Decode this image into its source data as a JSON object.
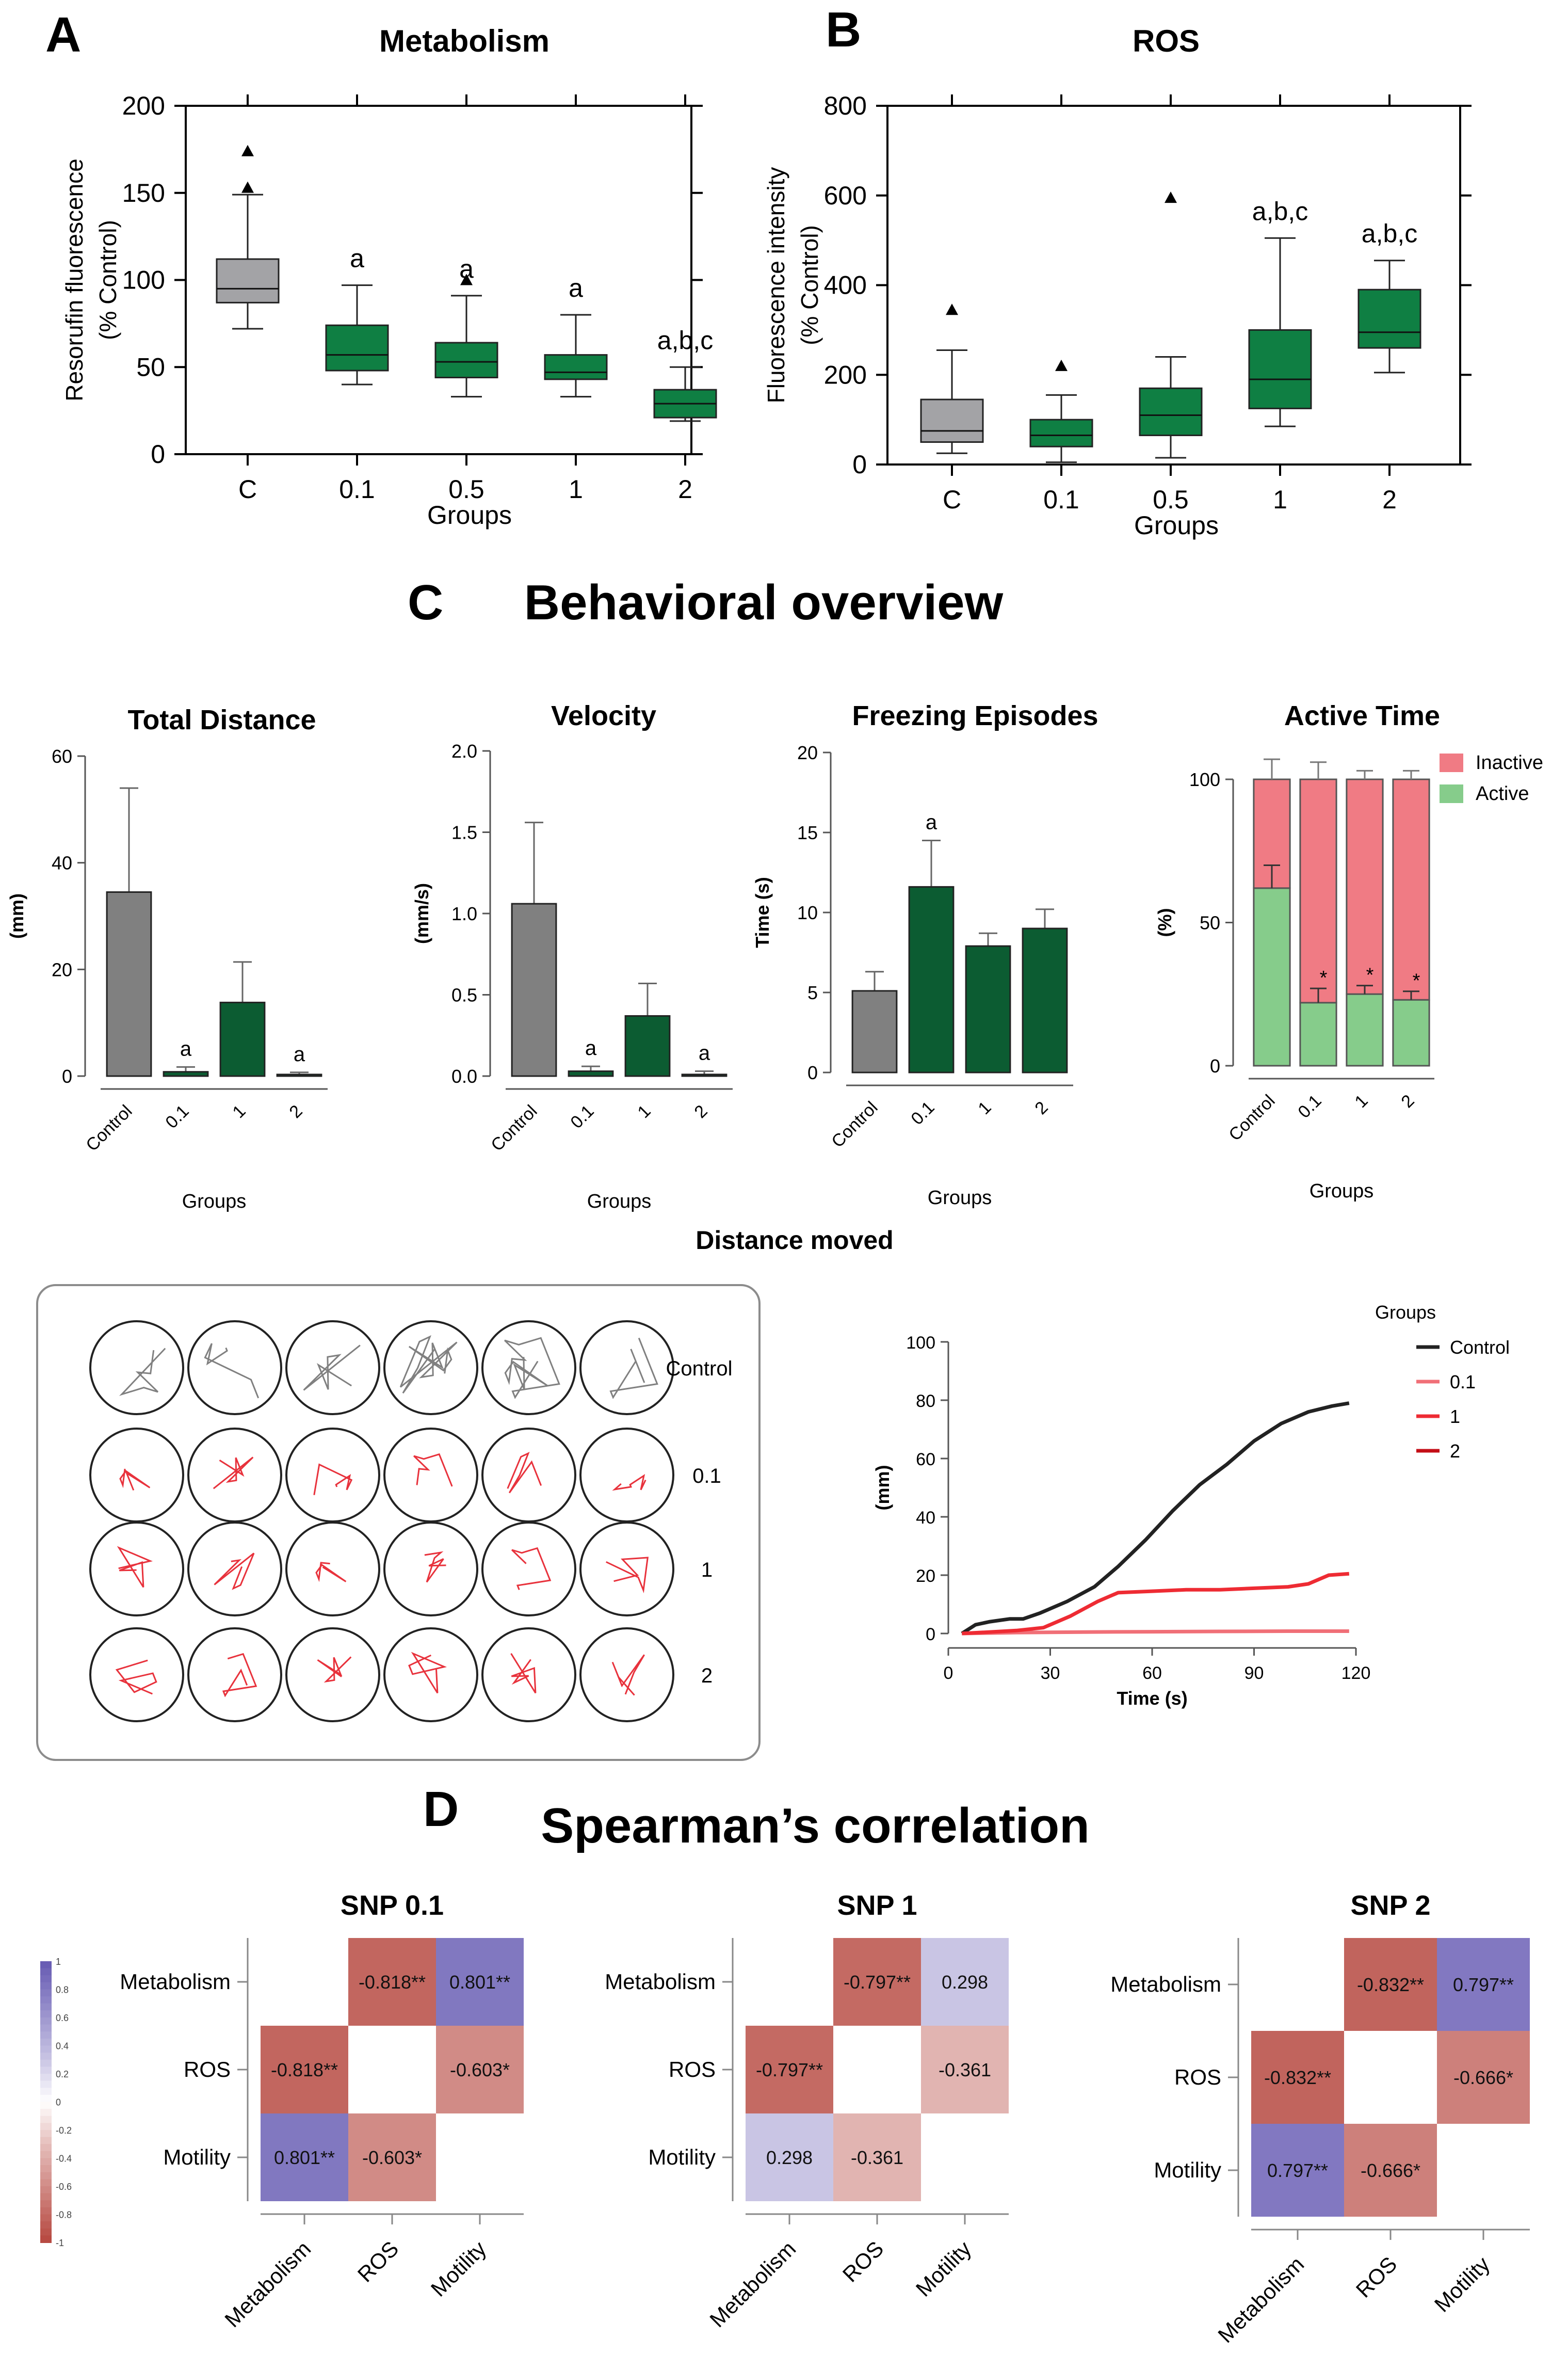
{
  "panels": {
    "A": {
      "letter": "A"
    },
    "B": {
      "letter": "B"
    },
    "C": {
      "letter": "C",
      "title": "Behavioral overview"
    },
    "D": {
      "letter": "D",
      "title": "Spearman’s correlation"
    }
  },
  "colors": {
    "gray": "#a3a3a6",
    "green_box": "#0f7f43",
    "green_bar": "#0c5c32",
    "red_track": "#e8323c",
    "dark_track": "#808080",
    "inactive": "#f07b84",
    "active": "#86cc8b",
    "neg_strong": "#b6473f",
    "pos_strong": "#6559b2"
  },
  "chart_data": [
    {
      "id": "metabolism",
      "type": "box",
      "title": "Metabolism",
      "xlabel": "Groups",
      "ylabel_line1": "Resorufin fluorescence",
      "ylabel_line2": "(% Control)",
      "ylim": [
        0,
        200
      ],
      "yticks": [
        "0",
        "50",
        "100",
        "150",
        "200"
      ],
      "categories": [
        "C",
        "0.1",
        "0.5",
        "1",
        "2"
      ],
      "boxes": [
        {
          "min": 72,
          "q1": 87,
          "median": 95,
          "q3": 112,
          "max": 149,
          "outliers": [
            153,
            174
          ],
          "label": ""
        },
        {
          "min": 40,
          "q1": 48,
          "median": 57,
          "q3": 74,
          "max": 97,
          "outliers": [],
          "label": "a"
        },
        {
          "min": 33,
          "q1": 44,
          "median": 53,
          "q3": 64,
          "max": 91,
          "outliers": [
            100
          ],
          "label": "a"
        },
        {
          "min": 33,
          "q1": 43,
          "median": 47,
          "q3": 57,
          "max": 80,
          "outliers": [],
          "label": "a"
        },
        {
          "min": 19,
          "q1": 21,
          "median": 29,
          "q3": 37,
          "max": 50,
          "outliers": [],
          "label": "a,b,c"
        }
      ]
    },
    {
      "id": "ros",
      "type": "box",
      "title": "ROS",
      "xlabel": "Groups",
      "ylabel_line1": "Fluorescence intensity",
      "ylabel_line2": "(% Control)",
      "ylim": [
        0,
        800
      ],
      "yticks": [
        "0",
        "200",
        "400",
        "600",
        "800"
      ],
      "categories": [
        "C",
        "0.1",
        "0.5",
        "1",
        "2"
      ],
      "boxes": [
        {
          "min": 25,
          "q1": 50,
          "median": 75,
          "q3": 145,
          "max": 255,
          "outliers": [
            345
          ],
          "label": ""
        },
        {
          "min": 5,
          "q1": 40,
          "median": 65,
          "q3": 100,
          "max": 155,
          "outliers": [
            220
          ],
          "label": ""
        },
        {
          "min": 15,
          "q1": 65,
          "median": 110,
          "q3": 170,
          "max": 240,
          "outliers": [
            595
          ],
          "label": ""
        },
        {
          "min": 85,
          "q1": 125,
          "median": 190,
          "q3": 300,
          "max": 505,
          "outliers": [],
          "label": "a,b,c"
        },
        {
          "min": 205,
          "q1": 260,
          "median": 295,
          "q3": 390,
          "max": 455,
          "outliers": [],
          "label": "a,b,c"
        }
      ]
    },
    {
      "id": "total-distance",
      "type": "bar",
      "title": "Total Distance",
      "xlabel": "Groups",
      "ylabel": "(mm)",
      "ylim": [
        0,
        60
      ],
      "yticks": [
        "0",
        "20",
        "40",
        "60"
      ],
      "categories": [
        "Control",
        "0.1",
        "1",
        "2"
      ],
      "values": [
        34.5,
        0.8,
        13.8,
        0.3
      ],
      "errors": [
        19.5,
        0.9,
        7.6,
        0.4
      ],
      "labels": [
        "",
        "a",
        "",
        "a"
      ]
    },
    {
      "id": "velocity",
      "type": "bar",
      "title": "Velocity",
      "xlabel": "Groups",
      "ylabel": "(mm/s)",
      "ylim": [
        0,
        2.0
      ],
      "yticks": [
        "0.0",
        "0.5",
        "1.0",
        "1.5",
        "2.0"
      ],
      "categories": [
        "Control",
        "0.1",
        "1",
        "2"
      ],
      "values": [
        1.06,
        0.03,
        0.37,
        0.01
      ],
      "errors": [
        0.5,
        0.03,
        0.2,
        0.02
      ],
      "labels": [
        "",
        "a",
        "",
        "a"
      ]
    },
    {
      "id": "freezing",
      "type": "bar",
      "title": "Freezing Episodes",
      "xlabel": "Groups",
      "ylabel": "Time (s)",
      "ylim": [
        0,
        20
      ],
      "yticks": [
        "0",
        "5",
        "10",
        "15",
        "20"
      ],
      "categories": [
        "Control",
        "0.1",
        "1",
        "2"
      ],
      "values": [
        5.1,
        11.6,
        7.9,
        9.0
      ],
      "errors": [
        1.2,
        2.9,
        0.8,
        1.2
      ],
      "labels": [
        "",
        "a",
        "",
        ""
      ]
    },
    {
      "id": "active-time",
      "type": "stacked-bar",
      "title": "Active Time",
      "xlabel": "Groups",
      "ylabel": "(%)",
      "ylim": [
        0,
        100
      ],
      "yticks": [
        "0",
        "50",
        "100"
      ],
      "categories": [
        "Control",
        "0.1",
        "1",
        "2"
      ],
      "series": [
        {
          "name": "Active",
          "values": [
            62,
            22,
            25,
            23
          ],
          "errors": [
            8,
            5,
            3,
            3
          ]
        },
        {
          "name": "Inactive",
          "values": [
            38,
            78,
            75,
            77
          ],
          "errors": [
            7,
            6,
            3,
            3
          ]
        }
      ],
      "legend": [
        "Inactive",
        "Active"
      ],
      "labels": [
        "",
        "*",
        "*",
        "*"
      ]
    },
    {
      "id": "distance-moved",
      "type": "line",
      "title": "Distance moved",
      "xlabel": "Time (s)",
      "ylabel": "(mm)",
      "xlim": [
        0,
        120
      ],
      "ylim": [
        0,
        100
      ],
      "xticks": [
        "0",
        "30",
        "60",
        "90",
        "120"
      ],
      "yticks": [
        "0",
        "20",
        "40",
        "60",
        "80",
        "100"
      ],
      "legend_title": "Groups",
      "series": [
        {
          "name": "Control",
          "x": [
            4,
            8,
            12,
            18,
            22,
            27,
            35,
            43,
            50,
            58,
            66,
            74,
            82,
            90,
            98,
            106,
            113,
            118
          ],
          "y": [
            0,
            3,
            4,
            5,
            5,
            7,
            11,
            16,
            23,
            32,
            42,
            51,
            58,
            66,
            72,
            76,
            78,
            79
          ]
        },
        {
          "name": "0.1",
          "x": [
            4,
            20,
            40,
            60,
            80,
            100,
            118
          ],
          "y": [
            0,
            0.3,
            0.5,
            0.6,
            0.7,
            0.8,
            0.8
          ]
        },
        {
          "name": "1",
          "x": [
            4,
            12,
            20,
            28,
            36,
            44,
            50,
            60,
            70,
            80,
            90,
            100,
            106,
            112,
            118
          ],
          "y": [
            0,
            0.5,
            1,
            2,
            6,
            11,
            14,
            14.5,
            15,
            15,
            15.5,
            16,
            17,
            20,
            20.5
          ]
        },
        {
          "name": "2",
          "x": [],
          "y": []
        }
      ]
    },
    {
      "id": "snp-0.1",
      "type": "heatmap",
      "title": "SNP 0.1",
      "rows": [
        "Metabolism",
        "ROS",
        "Motility"
      ],
      "cols": [
        "Metabolism",
        "ROS",
        "Motility"
      ],
      "values": [
        [
          null,
          -0.818,
          0.801
        ],
        [
          -0.818,
          null,
          -0.603
        ],
        [
          0.801,
          -0.603,
          null
        ]
      ],
      "labels": [
        [
          "",
          "-0.818**",
          "0.801**"
        ],
        [
          "-0.818**",
          "",
          "-0.603*"
        ],
        [
          "0.801**",
          "-0.603*",
          ""
        ]
      ]
    },
    {
      "id": "snp-1",
      "type": "heatmap",
      "title": "SNP 1",
      "rows": [
        "Metabolism",
        "ROS",
        "Motility"
      ],
      "cols": [
        "Metabolism",
        "ROS",
        "Motility"
      ],
      "values": [
        [
          null,
          -0.797,
          0.298
        ],
        [
          -0.797,
          null,
          -0.361
        ],
        [
          0.298,
          -0.361,
          null
        ]
      ],
      "labels": [
        [
          "",
          "-0.797**",
          "0.298"
        ],
        [
          "-0.797**",
          "",
          "-0.361"
        ],
        [
          "0.298",
          "-0.361",
          ""
        ]
      ]
    },
    {
      "id": "snp-2",
      "type": "heatmap",
      "title": "SNP 2",
      "rows": [
        "Metabolism",
        "ROS",
        "Motility"
      ],
      "cols": [
        "Metabolism",
        "ROS",
        "Motility"
      ],
      "values": [
        [
          null,
          -0.832,
          0.797
        ],
        [
          -0.832,
          null,
          -0.666
        ],
        [
          0.797,
          -0.666,
          null
        ]
      ],
      "labels": [
        [
          "",
          "-0.832**",
          "0.797**"
        ],
        [
          "-0.832**",
          "",
          "-0.666*"
        ],
        [
          "0.797**",
          "-0.666*",
          ""
        ]
      ]
    },
    {
      "id": "color-scale",
      "type": "colorbar",
      "ticks": [
        "1",
        "0.8",
        "0.6",
        "0.4",
        "0.2",
        "0",
        "-0.2",
        "-0.4",
        "-0.6",
        "-0.8",
        "-1"
      ]
    }
  ],
  "tracks": {
    "row_labels": [
      "Control",
      "0.1",
      "1",
      "2"
    ]
  }
}
